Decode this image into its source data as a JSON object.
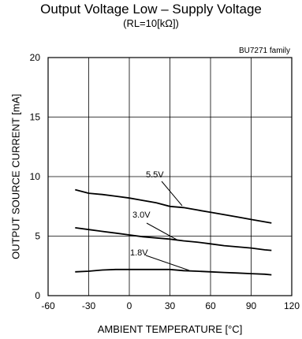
{
  "chart_data": {
    "type": "line",
    "title": "Output Voltage Low – Supply Voltage",
    "subtitle": "(RL=10[kΩ])",
    "family_note": "BU7271 family",
    "xlabel": "AMBIENT TEMPERATURE [°C]",
    "ylabel": "OUTPUT SOURCE CURRENT [mA]",
    "xlim": [
      -60,
      120
    ],
    "ylim": [
      0,
      20
    ],
    "xticks": [
      -60,
      -30,
      0,
      30,
      60,
      90,
      120
    ],
    "yticks": [
      0,
      5,
      10,
      15,
      20
    ],
    "grid": true,
    "series": [
      {
        "name": "5.5V",
        "x": [
          -40,
          -30,
          -20,
          -10,
          0,
          10,
          20,
          30,
          40,
          50,
          60,
          70,
          80,
          90,
          100,
          105
        ],
        "y": [
          8.9,
          8.6,
          8.5,
          8.35,
          8.2,
          8.0,
          7.8,
          7.5,
          7.4,
          7.2,
          7.0,
          6.8,
          6.6,
          6.4,
          6.2,
          6.1
        ]
      },
      {
        "name": "3.0V",
        "x": [
          -40,
          -30,
          -20,
          -10,
          0,
          10,
          20,
          30,
          40,
          50,
          60,
          70,
          80,
          90,
          100,
          105
        ],
        "y": [
          5.7,
          5.55,
          5.4,
          5.25,
          5.1,
          4.95,
          4.85,
          4.75,
          4.6,
          4.5,
          4.35,
          4.2,
          4.1,
          4.0,
          3.85,
          3.8
        ]
      },
      {
        "name": "1.8V",
        "x": [
          -40,
          -30,
          -20,
          -10,
          0,
          10,
          20,
          30,
          40,
          50,
          60,
          70,
          80,
          90,
          100,
          105
        ],
        "y": [
          2.0,
          2.05,
          2.15,
          2.2,
          2.2,
          2.2,
          2.2,
          2.2,
          2.1,
          2.05,
          2.0,
          1.95,
          1.9,
          1.85,
          1.8,
          1.75
        ]
      }
    ]
  }
}
